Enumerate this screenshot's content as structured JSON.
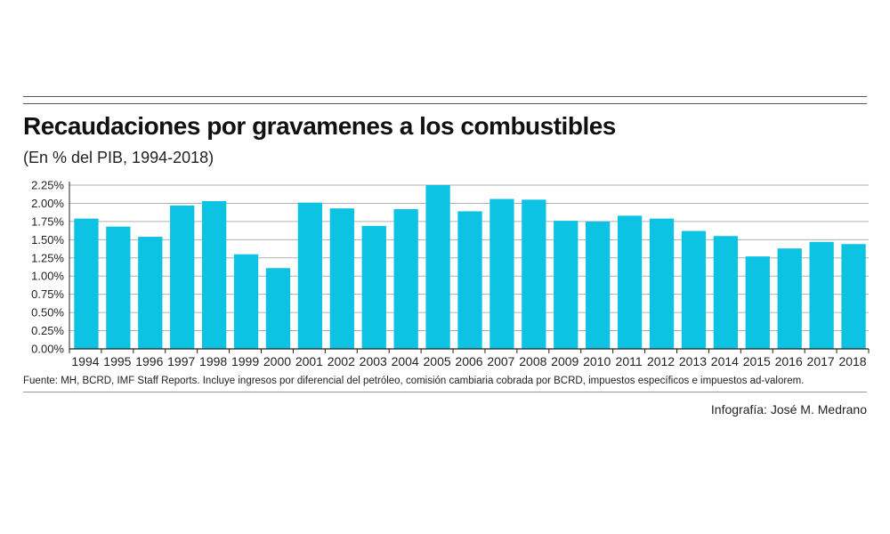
{
  "header": {
    "title": "Recaudaciones por gravamenes a los combustibles",
    "subtitle": "(En % del PIB, 1994-2018)"
  },
  "footer": {
    "source": "Fuente: MH, BCRD, IMF Staff Reports. Incluye ingresos por diferencial del petróleo, comisión cambiaria cobrada por BCRD,  impuestos específicos e impuestos ad-valorem.",
    "credit": "Infografía: José M. Medrano"
  },
  "colors": {
    "bar": "#0cc3e4",
    "grid": "#b0b0b0",
    "axis": "#222222"
  },
  "chart_data": {
    "type": "bar",
    "title": "Recaudaciones por gravamenes a los combustibles",
    "subtitle": "(En % del PIB, 1994-2018)",
    "xlabel": "",
    "ylabel": "",
    "ylim": [
      0,
      2.25
    ],
    "yticks": [
      "0.00%",
      "0.25%",
      "0.50%",
      "0.75%",
      "1.00%",
      "1.25%",
      "1.50%",
      "1.75%",
      "2.00%",
      "2.25%"
    ],
    "ytick_values": [
      0,
      0.25,
      0.5,
      0.75,
      1.0,
      1.25,
      1.5,
      1.75,
      2.0,
      2.25
    ],
    "grid": true,
    "categories": [
      "1994",
      "1995",
      "1996",
      "1997",
      "1998",
      "1999",
      "2000",
      "2001",
      "2002",
      "2003",
      "2004",
      "2005",
      "2006",
      "2007",
      "2008",
      "2009",
      "2010",
      "2011",
      "2012",
      "2013",
      "2014",
      "2015",
      "2016",
      "2017",
      "2018"
    ],
    "values": [
      1.79,
      1.68,
      1.54,
      1.97,
      2.03,
      1.3,
      1.11,
      2.01,
      1.93,
      1.69,
      1.92,
      2.25,
      1.89,
      2.06,
      2.05,
      1.76,
      1.75,
      1.83,
      1.79,
      1.62,
      1.55,
      1.27,
      1.38,
      1.47,
      1.44
    ]
  }
}
